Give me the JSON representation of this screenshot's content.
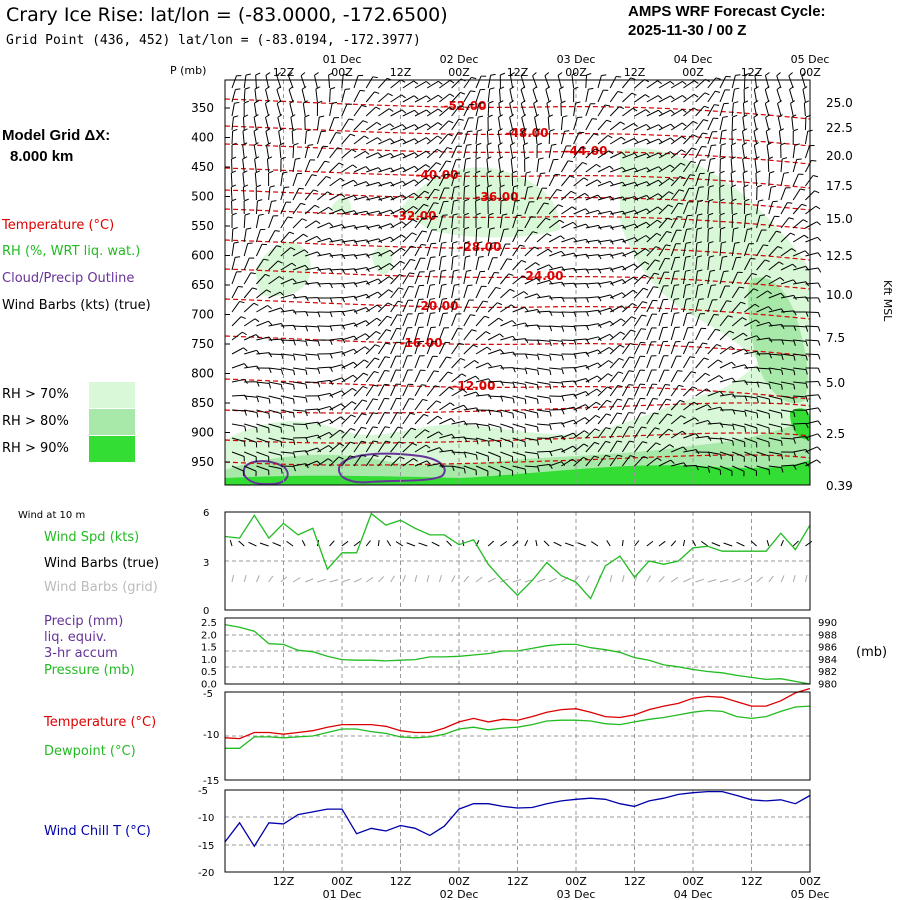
{
  "header": {
    "title": "Crary Ice Rise:  lat/lon = (-83.0000, -172.6500)",
    "subtitle": "Grid Point (436, 452) lat/lon = (-83.0194, -172.3977)",
    "cycle_line1": "AMPS WRF Forecast Cycle:",
    "cycle_line2": "2025-11-30 / 00  Z",
    "grid_label": "Model Grid ΔX:",
    "grid_value": "8.000 km"
  },
  "colors": {
    "temperature": "#dd0000",
    "rh": "#22bb22",
    "cloud": "#663399",
    "wind_chill": "#0000aa",
    "grid_barbs": "#aaaaaa",
    "rh70": "#d8f8d8",
    "rh80": "#a8e8a8",
    "rh90": "#33dd33"
  },
  "legend_top": {
    "temperature": "Temperature (°C)",
    "rh": "RH (%, WRT liq. wat.)",
    "cloud": "Cloud/Precip Outline",
    "wind": "Wind Barbs (kts) (true)",
    "rh_levels": [
      "RH > 70%",
      "RH > 80%",
      "RH > 90%"
    ]
  },
  "time_axis": {
    "labels": [
      "12Z",
      "00Z",
      "12Z",
      "00Z",
      "12Z",
      "00Z",
      "12Z",
      "00Z",
      "12Z",
      "00Z"
    ],
    "dates": [
      "01 Dec",
      "02 Dec",
      "03 Dec",
      "04 Dec",
      "05 Dec"
    ]
  },
  "legend_panels": {
    "wind10m": "Wind at 10 m",
    "wind_spd": "Wind Spd (kts)",
    "wind_barbs_true": "Wind Barbs (true)",
    "wind_barbs_grid": "Wind Barbs (grid)",
    "precip1": "Precip (mm)",
    "precip2": "liq. equiv.",
    "precip3": "3-hr accum",
    "pressure": "Pressure (mb)",
    "pressure_unit": "(mb)",
    "temperature": "Temperature (°C)",
    "dewpoint": "Dewpoint (°C)",
    "windchill": "Wind Chill T (°C)"
  },
  "chart_data": [
    {
      "type": "heatmap",
      "name": "cross-section",
      "y_axis_label": "P (mb)",
      "pressure_ticks": [
        350,
        400,
        450,
        500,
        550,
        600,
        650,
        700,
        750,
        800,
        850,
        900,
        950
      ],
      "right_axis_label": "Kft MSL",
      "right_ticks": [
        "25.0",
        "22.5",
        "20.0",
        "17.5",
        "15.0",
        "12.5",
        "10.0",
        "7.5",
        "5.0",
        "2.5",
        "0.39"
      ],
      "temperature_contours": [
        "-52.00",
        "-48.00",
        "-44.00",
        "-40.00",
        "-36.00",
        "-32.00",
        "-28.00",
        "-24.00",
        "-20.00",
        "-16.00",
        "-12.00"
      ]
    },
    {
      "type": "line",
      "name": "wind-speed-10m",
      "ylim": [
        0,
        6
      ],
      "yticks": [
        "6",
        "3",
        "0"
      ],
      "x_hours": [
        0,
        3,
        6,
        9,
        12,
        15,
        18,
        21,
        24,
        27,
        30,
        33,
        36,
        39,
        42,
        45,
        48,
        51,
        54,
        57,
        60,
        63,
        66,
        69,
        72,
        75,
        78,
        81,
        84,
        87,
        90,
        93,
        96,
        99,
        102,
        105,
        108,
        111,
        114,
        117,
        120
      ],
      "series": [
        {
          "values": [
            4.5,
            4.4,
            5.8,
            4.4,
            5.3,
            4.6,
            5.0,
            2.5,
            3.5,
            3.5,
            5.9,
            5.2,
            5.5,
            5.0,
            4.6,
            4.6,
            4.0,
            4.3,
            2.8,
            1.8,
            0.9,
            1.8,
            2.9,
            2.1,
            1.7,
            0.7,
            2.7,
            3.3,
            2.0,
            3.0,
            2.8,
            3.0,
            3.8,
            3.9,
            3.6,
            3.6,
            3.6,
            3.6,
            4.7,
            3.7,
            5.2
          ]
        }
      ]
    },
    {
      "type": "line",
      "name": "pressure",
      "left_ticks": [
        "2.5",
        "2.0",
        "1.5",
        "1.0",
        "0.5",
        "0.0"
      ],
      "right_ticks": [
        "990",
        "988",
        "986",
        "984",
        "982",
        "980"
      ],
      "ylim": [
        980,
        990
      ],
      "series": [
        {
          "values": [
            989.0,
            988.6,
            988.0,
            986.1,
            986.0,
            985.1,
            984.9,
            984.2,
            983.7,
            983.6,
            983.6,
            983.5,
            983.6,
            983.7,
            984.1,
            984.1,
            984.2,
            984.4,
            984.6,
            985.0,
            985.0,
            985.4,
            985.8,
            986.0,
            986.0,
            985.5,
            985.2,
            984.8,
            984.0,
            983.6,
            982.9,
            982.6,
            982.2,
            981.9,
            981.7,
            981.3,
            981.0,
            980.7,
            980.8,
            980.4,
            980.0
          ]
        }
      ]
    },
    {
      "type": "line",
      "name": "temperature-dewpoint",
      "ylim": [
        -15,
        -5
      ],
      "yticks": [
        "-5",
        "-10",
        "-15"
      ],
      "series": [
        {
          "values": [
            -10.2,
            -10.3,
            -9.6,
            -9.6,
            -9.8,
            -9.6,
            -9.4,
            -9.0,
            -8.7,
            -8.7,
            -8.7,
            -8.9,
            -9.4,
            -9.6,
            -9.6,
            -9.1,
            -8.4,
            -8.0,
            -8.4,
            -8.1,
            -8.2,
            -7.8,
            -7.3,
            -7.0,
            -6.9,
            -7.3,
            -7.8,
            -7.9,
            -7.6,
            -7.0,
            -6.6,
            -6.3,
            -5.7,
            -5.5,
            -5.6,
            -6.1,
            -6.6,
            -6.6,
            -6.0,
            -5.1,
            -4.6
          ]
        },
        {
          "values": [
            -11.4,
            -11.4,
            -10.1,
            -10.1,
            -10.2,
            -10.1,
            -10.0,
            -9.6,
            -9.2,
            -9.2,
            -9.5,
            -9.7,
            -10.1,
            -10.2,
            -10.1,
            -9.8,
            -9.2,
            -9.0,
            -9.3,
            -9.1,
            -9.0,
            -8.7,
            -8.3,
            -8.2,
            -8.2,
            -8.3,
            -8.6,
            -8.7,
            -8.4,
            -8.1,
            -7.9,
            -7.6,
            -7.3,
            -7.1,
            -7.2,
            -7.8,
            -8.0,
            -7.8,
            -7.2,
            -6.7,
            -6.6
          ]
        }
      ]
    },
    {
      "type": "line",
      "name": "wind-chill",
      "ylim": [
        -20,
        -5
      ],
      "yticks": [
        "-5",
        "-10",
        "-15",
        "-20"
      ],
      "series": [
        {
          "values": [
            -14.5,
            -11.0,
            -15.3,
            -11.0,
            -11.2,
            -9.5,
            -9.0,
            -8.5,
            -8.5,
            -13.0,
            -12.0,
            -12.5,
            -11.5,
            -12.0,
            -13.3,
            -11.6,
            -8.5,
            -7.5,
            -7.5,
            -8.0,
            -8.3,
            -8.2,
            -7.5,
            -7.0,
            -6.7,
            -6.5,
            -6.7,
            -7.5,
            -8.0,
            -7.0,
            -6.5,
            -5.8,
            -5.5,
            -5.3,
            -5.3,
            -6.0,
            -6.8,
            -7.0,
            -6.8,
            -7.5,
            -6.0
          ]
        }
      ]
    }
  ]
}
